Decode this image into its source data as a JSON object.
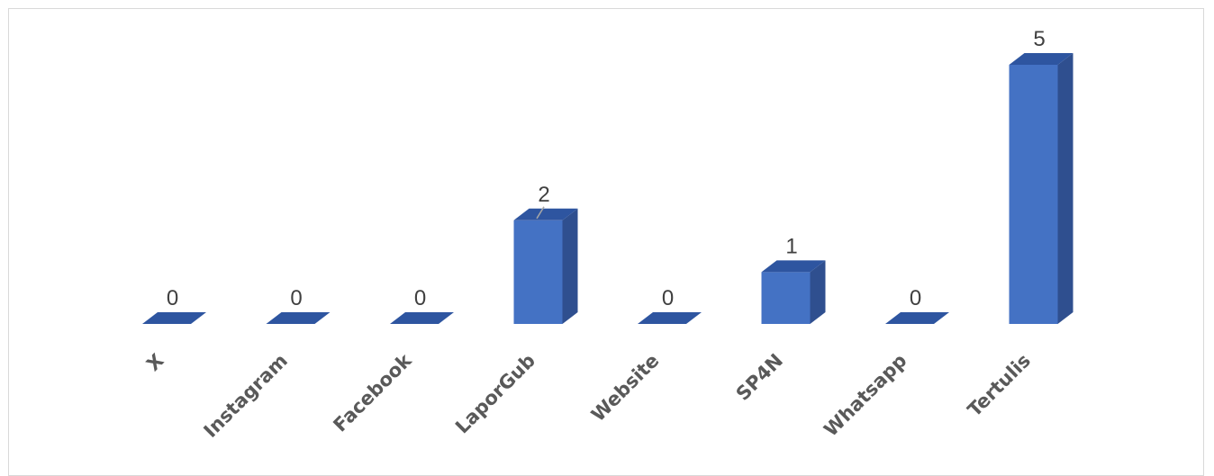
{
  "chart_data": {
    "type": "bar",
    "style": "3d-column",
    "categories": [
      "X",
      "Instagram",
      "Facebook",
      "LaporGub",
      "Website",
      "SP4N",
      "Whatsapp",
      "Tertulis"
    ],
    "values": [
      0,
      0,
      0,
      2,
      0,
      1,
      0,
      5
    ],
    "data_labels": [
      "0",
      "0",
      "0",
      "2",
      "0",
      "1",
      "0",
      "5"
    ],
    "title": "",
    "xlabel": "",
    "ylabel": "",
    "ylim": [
      0,
      5
    ],
    "grid": false,
    "legend": "none",
    "colors": {
      "front": "#4472C4",
      "side": "#2F4F8F",
      "top": "#2E55A0",
      "label_text": "#404040",
      "category_text": "#595959",
      "frame_border": "#d9d9d9"
    }
  }
}
